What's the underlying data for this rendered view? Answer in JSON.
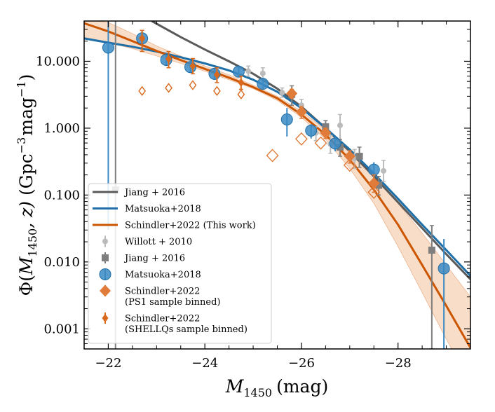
{
  "chart_data": {
    "type": "scatter",
    "title": "",
    "xlabel": "M_1450 (mag)",
    "xlabel_parts": {
      "main": "M",
      "sub": "1450",
      "unit": "(mag)"
    },
    "ylabel": "Φ(M_1450, z) (Gpc^-3 mag^-1)",
    "ylabel_parts": {
      "phi": "Φ(",
      "m": "M",
      "sub": "1450",
      "z": ", z)",
      "unit": "(Gpc",
      "exp1": "−3",
      "mag": "mag",
      "exp2": "−1",
      "close": ")"
    },
    "xlim": [
      -21.5,
      -29.5
    ],
    "ylim": [
      0.0005,
      40
    ],
    "yscale": "log",
    "x_ticks": [
      -22,
      -24,
      -26,
      -28
    ],
    "x_tick_labels": [
      "−22",
      "−24",
      "−26",
      "−28"
    ],
    "y_ticks": [
      0.001,
      0.01,
      0.1,
      1,
      10
    ],
    "y_tick_labels": [
      "0.001",
      "0.010",
      "0.100",
      "1.000",
      "10.000"
    ],
    "lines": [
      {
        "name": "Jiang + 2016",
        "color": "#5a5a5a",
        "x": [
          -22.9,
          -23.5,
          -24,
          -24.5,
          -25,
          -25.5,
          -26,
          -26.5,
          -27,
          -27.5,
          -28,
          -28.5,
          -29,
          -29.5
        ],
        "y": [
          40,
          23,
          15,
          10,
          6.5,
          3.9,
          2.1,
          1.0,
          0.45,
          0.19,
          0.078,
          0.032,
          0.013,
          0.0055
        ]
      },
      {
        "name": "Matsuoka+2018",
        "color": "#1f6fa8",
        "x": [
          -21.5,
          -22,
          -22.5,
          -23,
          -23.5,
          -24,
          -24.5,
          -25,
          -25.5,
          -26,
          -26.5,
          -27,
          -27.5,
          -28,
          -28.5,
          -29,
          -29.5
        ],
        "y": [
          22,
          19,
          16.5,
          14,
          11.5,
          9.3,
          7.3,
          5.3,
          3.5,
          2.0,
          1.0,
          0.48,
          0.21,
          0.088,
          0.036,
          0.015,
          0.0062
        ]
      },
      {
        "name": "Schindler+2022 (This work)",
        "color": "#cc5500",
        "x": [
          -21.5,
          -22,
          -22.5,
          -23,
          -23.5,
          -24,
          -24.5,
          -25,
          -25.5,
          -26,
          -26.5,
          -27,
          -27.5,
          -28,
          -28.5,
          -29,
          -29.5
        ],
        "y": [
          37,
          28,
          20,
          14.3,
          10.4,
          7.7,
          5.7,
          4.1,
          2.8,
          1.6,
          0.8,
          0.34,
          0.12,
          0.036,
          0.009,
          0.0022,
          0.00052
        ]
      }
    ],
    "band": {
      "name": "Schindler+2022 uncertainty",
      "color": "#f4c6a4",
      "x": [
        -21.5,
        -22,
        -22.5,
        -23,
        -23.5,
        -24,
        -24.5,
        -25,
        -25.5,
        -26,
        -26.5,
        -27,
        -27.5,
        -28,
        -28.5,
        -29,
        -29.5
      ],
      "lower": [
        23,
        19,
        15.5,
        12,
        9.3,
        7.1,
        5.3,
        3.9,
        2.6,
        1.45,
        0.68,
        0.25,
        0.075,
        0.017,
        0.0035,
        0.0007,
        0.00015
      ],
      "upper": [
        42,
        38,
        26,
        17,
        12,
        8.5,
        6.3,
        4.4,
        3.0,
        1.8,
        0.95,
        0.46,
        0.2,
        0.075,
        0.027,
        0.009,
        0.003
      ]
    },
    "points": [
      {
        "series": "Willott + 2010",
        "color": "#bbbbbb",
        "marker": "circle-small",
        "data": [
          [
            -24.9,
            7.1,
            6.0,
            8.5
          ],
          [
            -25.2,
            6.6,
            5.5,
            8.0
          ],
          [
            -25.6,
            3.4,
            2.9,
            4.0
          ],
          [
            -26.0,
            2.2,
            1.8,
            2.7
          ],
          [
            -26.3,
            0.85,
            0.65,
            1.05
          ],
          [
            -26.6,
            0.58,
            0.42,
            0.78
          ],
          [
            -26.8,
            1.1,
            0.65,
            1.6
          ],
          [
            -27.1,
            0.35,
            0.25,
            0.48
          ],
          [
            -27.7,
            0.23,
            0.16,
            0.33
          ]
        ]
      },
      {
        "series": "Jiang + 2016",
        "color": "#7f7f7f",
        "marker": "square",
        "data": [
          [
            -22.15,
            0.12,
            0.0001,
            50
          ],
          [
            -25.8,
            3.2,
            2.2,
            4.3
          ],
          [
            -26.5,
            1.05,
            0.8,
            1.3
          ],
          [
            -26.8,
            0.52,
            0.38,
            0.68
          ],
          [
            -27.2,
            0.38,
            0.26,
            0.52
          ],
          [
            -27.6,
            0.14,
            0.1,
            0.19
          ],
          [
            -28.7,
            0.015,
            0.0005,
            0.035
          ]
        ]
      },
      {
        "series": "Matsuoka+2018",
        "color": "#3b8ac4",
        "marker": "circle",
        "data": [
          [
            -22.0,
            16,
            0.03,
            40
          ],
          [
            -22.7,
            22,
            16,
            28
          ],
          [
            -23.2,
            10.5,
            8.5,
            13
          ],
          [
            -23.7,
            8.2,
            6.8,
            10
          ],
          [
            -24.2,
            6.5,
            5.3,
            8.0
          ],
          [
            -24.7,
            7.0,
            5.8,
            8.3
          ],
          [
            -25.2,
            4.6,
            3.8,
            5.6
          ],
          [
            -25.7,
            1.35,
            0.75,
            2.0
          ],
          [
            -26.2,
            0.92,
            0.7,
            1.15
          ],
          [
            -26.7,
            0.59,
            0.45,
            0.75
          ],
          [
            -27.5,
            0.24,
            0.18,
            0.31
          ],
          [
            -28.95,
            0.008,
            0.0005,
            0.022
          ]
        ]
      },
      {
        "series": "Schindler+2022 (PS1 sample binned)",
        "color": "#e07b39",
        "marker": "diamond-large",
        "data": [
          [
            -25.4,
            0.39,
            null,
            null
          ],
          [
            -25.8,
            3.3,
            2.8,
            3.8
          ],
          [
            -26.0,
            0.69,
            null,
            null
          ],
          [
            -26.0,
            1.75,
            1.4,
            2.1
          ],
          [
            -26.4,
            0.6,
            null,
            null
          ],
          [
            -26.5,
            0.85,
            0.7,
            1.0
          ],
          [
            -27.0,
            0.28,
            null,
            null
          ],
          [
            -27.0,
            0.38,
            0.3,
            0.46
          ],
          [
            -27.5,
            0.15,
            0.11,
            0.2
          ],
          [
            -27.5,
            0.11,
            null,
            null
          ]
        ]
      },
      {
        "series": "Schindler+2022 (SHELLQs sample binned)",
        "color": "#d9691c",
        "marker": "diamond-small",
        "data": [
          [
            -22.7,
            3.6,
            null,
            null
          ],
          [
            -22.7,
            22,
            14,
            29
          ],
          [
            -23.25,
            4.0,
            null,
            null
          ],
          [
            -23.25,
            10.8,
            8,
            14
          ],
          [
            -23.75,
            4.4,
            null,
            null
          ],
          [
            -23.75,
            8.5,
            6.5,
            11
          ],
          [
            -24.25,
            3.6,
            null,
            null
          ],
          [
            -24.25,
            6.3,
            4.8,
            8.0
          ],
          [
            -24.75,
            3.2,
            null,
            null
          ],
          [
            -24.75,
            4.8,
            3.8,
            6.0
          ]
        ]
      }
    ],
    "legend": {
      "placement": "lower-left",
      "entries": [
        {
          "label": "Jiang + 2016",
          "kind": "line",
          "color": "#5a5a5a"
        },
        {
          "label": "Matsuoka+2018",
          "kind": "line",
          "color": "#1f6fa8"
        },
        {
          "label": "Schindler+2022 (This work)",
          "kind": "line",
          "color": "#cc5500"
        },
        {
          "label": "Willott + 2010",
          "kind": "circle-small",
          "color": "#bbbbbb"
        },
        {
          "label": "Jiang + 2016",
          "kind": "square",
          "color": "#7f7f7f"
        },
        {
          "label": "Matsuoka+2018",
          "kind": "circle",
          "color": "#3b8ac4"
        },
        {
          "label": "Schindler+2022",
          "label2": "(PS1 sample binned)",
          "kind": "diamond-large",
          "color": "#e07b39"
        },
        {
          "label": "Schindler+2022",
          "label2": "(SHELLQs sample binned)",
          "kind": "diamond-small",
          "color": "#d9691c"
        }
      ]
    }
  }
}
